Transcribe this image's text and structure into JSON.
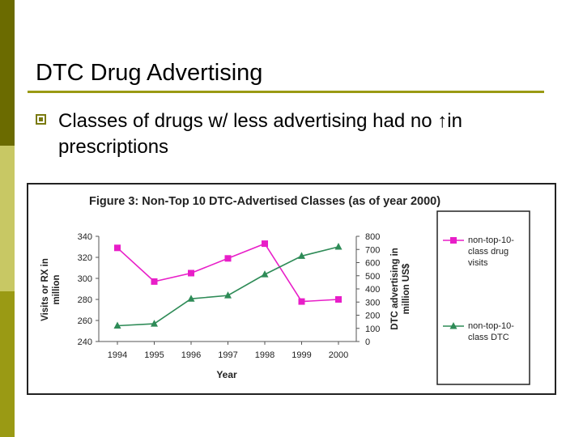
{
  "slide": {
    "title": "DTC Drug Advertising",
    "bullet": "Classes of drugs w/ less advertising had no ↑in prescriptions"
  },
  "colors": {
    "accent_dark": "#6b6b00",
    "accent_light": "#c8c864",
    "rule": "#9a9a14",
    "visits_series": "#e81ec8",
    "dtc_series": "#2e8b57"
  },
  "chart_data": {
    "type": "line",
    "title": "Figure 3: Non-Top 10 DTC-Advertised Classes (as of year 2000)",
    "xlabel": "Year",
    "ylabel": "Visits or RX in million",
    "y2label": "DTC advertising in million US$",
    "x": [
      "1994",
      "1995",
      "1996",
      "1997",
      "1998",
      "1999",
      "2000"
    ],
    "ylim": [
      240,
      340
    ],
    "y2lim": [
      0,
      800
    ],
    "yticks": [
      240,
      260,
      280,
      300,
      320,
      340
    ],
    "y2ticks": [
      0,
      100,
      200,
      300,
      400,
      500,
      600,
      700,
      800
    ],
    "legend_placement": "right",
    "series": [
      {
        "name": "non-top-10-class drug visits",
        "axis": "left",
        "marker": "square",
        "values": [
          329,
          297,
          305,
          319,
          333,
          278,
          280
        ]
      },
      {
        "name": "non-top-10-class DTC",
        "axis": "right",
        "marker": "triangle",
        "values": [
          120,
          135,
          325,
          350,
          510,
          650,
          720
        ]
      }
    ]
  }
}
